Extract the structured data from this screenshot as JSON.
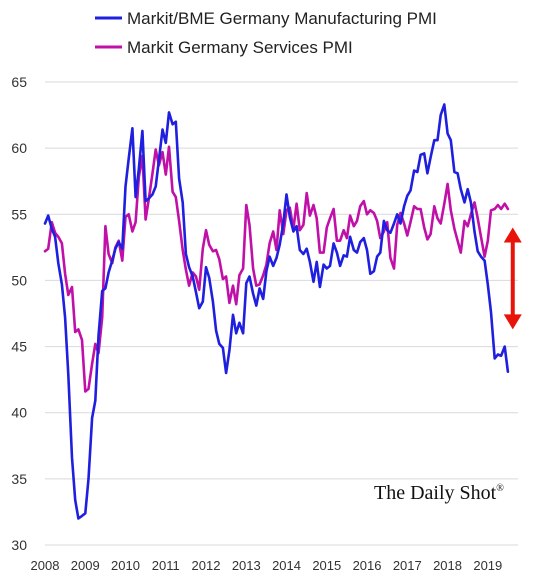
{
  "chart_data": {
    "type": "line",
    "title": "",
    "xlabel": "",
    "ylabel": "",
    "xlim": [
      2008.0,
      2019.75
    ],
    "ylim": [
      30,
      65
    ],
    "y_ticks": [
      30,
      35,
      40,
      45,
      50,
      55,
      60,
      65
    ],
    "x_ticks": [
      "2008",
      "2009",
      "2010",
      "2011",
      "2012",
      "2013",
      "2014",
      "2015",
      "2016",
      "2017",
      "2018",
      "2019"
    ],
    "grid": "horizontal",
    "legend_position": "top-left",
    "series": [
      {
        "name": "Markit/BME Germany Manufacturing PMI",
        "color": "#1f1fdf",
        "points": [
          [
            2008.0,
            54.3
          ],
          [
            2008.08,
            54.9
          ],
          [
            2008.17,
            53.9
          ],
          [
            2008.25,
            53.3
          ],
          [
            2008.33,
            51.3
          ],
          [
            2008.42,
            49.7
          ],
          [
            2008.5,
            47.2
          ],
          [
            2008.58,
            42.9
          ],
          [
            2008.67,
            36.6
          ],
          [
            2008.75,
            33.4
          ],
          [
            2008.83,
            32.0
          ],
          [
            2008.92,
            32.2
          ],
          [
            2009.0,
            32.4
          ],
          [
            2009.08,
            35.0
          ],
          [
            2009.17,
            39.6
          ],
          [
            2009.25,
            40.9
          ],
          [
            2009.33,
            45.8
          ],
          [
            2009.42,
            49.2
          ],
          [
            2009.5,
            49.4
          ],
          [
            2009.58,
            50.6
          ],
          [
            2009.67,
            51.5
          ],
          [
            2009.75,
            52.4
          ],
          [
            2009.83,
            52.9
          ],
          [
            2009.92,
            52.4
          ],
          [
            2010.0,
            57.1
          ],
          [
            2010.08,
            59.2
          ],
          [
            2010.17,
            61.5
          ],
          [
            2010.25,
            56.3
          ],
          [
            2010.33,
            58.4
          ],
          [
            2010.42,
            61.3
          ],
          [
            2010.5,
            56.0
          ],
          [
            2010.58,
            56.2
          ],
          [
            2010.67,
            56.5
          ],
          [
            2010.75,
            57.1
          ],
          [
            2010.83,
            59.1
          ],
          [
            2010.92,
            61.4
          ],
          [
            2011.0,
            60.4
          ],
          [
            2011.08,
            62.7
          ],
          [
            2011.17,
            61.8
          ],
          [
            2011.25,
            62.0
          ],
          [
            2011.33,
            57.7
          ],
          [
            2011.42,
            55.9
          ],
          [
            2011.5,
            52.0
          ],
          [
            2011.58,
            51.0
          ],
          [
            2011.67,
            50.3
          ],
          [
            2011.75,
            49.1
          ],
          [
            2011.83,
            47.9
          ],
          [
            2011.92,
            48.4
          ],
          [
            2012.0,
            51.0
          ],
          [
            2012.08,
            50.2
          ],
          [
            2012.17,
            48.4
          ],
          [
            2012.25,
            46.2
          ],
          [
            2012.33,
            45.2
          ],
          [
            2012.42,
            44.9
          ],
          [
            2012.5,
            43.0
          ],
          [
            2012.58,
            44.7
          ],
          [
            2012.67,
            47.4
          ],
          [
            2012.75,
            46.0
          ],
          [
            2012.83,
            46.8
          ],
          [
            2012.92,
            46.0
          ],
          [
            2013.0,
            49.8
          ],
          [
            2013.08,
            50.3
          ],
          [
            2013.17,
            49.0
          ],
          [
            2013.25,
            48.1
          ],
          [
            2013.33,
            49.4
          ],
          [
            2013.42,
            48.6
          ],
          [
            2013.5,
            50.7
          ],
          [
            2013.58,
            51.8
          ],
          [
            2013.67,
            51.1
          ],
          [
            2013.75,
            51.7
          ],
          [
            2013.83,
            52.7
          ],
          [
            2013.92,
            54.3
          ],
          [
            2014.0,
            56.5
          ],
          [
            2014.08,
            54.8
          ],
          [
            2014.17,
            53.7
          ],
          [
            2014.25,
            54.1
          ],
          [
            2014.33,
            52.3
          ],
          [
            2014.42,
            52.0
          ],
          [
            2014.5,
            52.4
          ],
          [
            2014.58,
            51.4
          ],
          [
            2014.67,
            49.9
          ],
          [
            2014.75,
            51.4
          ],
          [
            2014.83,
            49.5
          ],
          [
            2014.92,
            51.2
          ],
          [
            2015.0,
            50.9
          ],
          [
            2015.08,
            51.1
          ],
          [
            2015.17,
            52.8
          ],
          [
            2015.25,
            52.1
          ],
          [
            2015.33,
            51.1
          ],
          [
            2015.42,
            51.9
          ],
          [
            2015.5,
            51.8
          ],
          [
            2015.58,
            53.3
          ],
          [
            2015.67,
            52.3
          ],
          [
            2015.75,
            52.1
          ],
          [
            2015.83,
            52.9
          ],
          [
            2015.92,
            53.2
          ],
          [
            2016.0,
            52.3
          ],
          [
            2016.08,
            50.5
          ],
          [
            2016.17,
            50.7
          ],
          [
            2016.25,
            51.8
          ],
          [
            2016.33,
            52.1
          ],
          [
            2016.42,
            54.5
          ],
          [
            2016.5,
            53.8
          ],
          [
            2016.58,
            53.6
          ],
          [
            2016.67,
            54.3
          ],
          [
            2016.75,
            55.0
          ],
          [
            2016.83,
            54.3
          ],
          [
            2016.92,
            55.6
          ],
          [
            2017.0,
            56.4
          ],
          [
            2017.08,
            56.8
          ],
          [
            2017.17,
            58.3
          ],
          [
            2017.25,
            58.2
          ],
          [
            2017.33,
            59.5
          ],
          [
            2017.42,
            59.6
          ],
          [
            2017.5,
            58.1
          ],
          [
            2017.58,
            59.3
          ],
          [
            2017.67,
            60.6
          ],
          [
            2017.75,
            60.6
          ],
          [
            2017.83,
            62.5
          ],
          [
            2017.92,
            63.3
          ],
          [
            2018.0,
            61.1
          ],
          [
            2018.08,
            60.6
          ],
          [
            2018.17,
            58.2
          ],
          [
            2018.25,
            58.1
          ],
          [
            2018.33,
            56.9
          ],
          [
            2018.42,
            55.9
          ],
          [
            2018.5,
            56.9
          ],
          [
            2018.58,
            55.9
          ],
          [
            2018.67,
            53.7
          ],
          [
            2018.75,
            52.2
          ],
          [
            2018.83,
            51.8
          ],
          [
            2018.92,
            51.5
          ],
          [
            2019.0,
            49.7
          ],
          [
            2019.08,
            47.6
          ],
          [
            2019.17,
            44.1
          ],
          [
            2019.25,
            44.4
          ],
          [
            2019.33,
            44.3
          ],
          [
            2019.42,
            45.0
          ],
          [
            2019.5,
            43.1
          ]
        ]
      },
      {
        "name": "Markit Germany Services PMI",
        "color": "#c010a8",
        "points": [
          [
            2008.0,
            52.2
          ],
          [
            2008.08,
            52.4
          ],
          [
            2008.17,
            54.4
          ],
          [
            2008.25,
            53.6
          ],
          [
            2008.33,
            53.3
          ],
          [
            2008.42,
            52.8
          ],
          [
            2008.5,
            50.5
          ],
          [
            2008.58,
            48.9
          ],
          [
            2008.67,
            49.5
          ],
          [
            2008.75,
            46.1
          ],
          [
            2008.83,
            46.3
          ],
          [
            2008.92,
            45.5
          ],
          [
            2009.0,
            41.6
          ],
          [
            2009.08,
            41.8
          ],
          [
            2009.17,
            43.7
          ],
          [
            2009.25,
            45.2
          ],
          [
            2009.33,
            44.5
          ],
          [
            2009.42,
            47.2
          ],
          [
            2009.5,
            54.1
          ],
          [
            2009.58,
            52.0
          ],
          [
            2009.67,
            51.3
          ],
          [
            2009.75,
            52.5
          ],
          [
            2009.83,
            53.0
          ],
          [
            2009.92,
            51.5
          ],
          [
            2010.0,
            54.8
          ],
          [
            2010.08,
            55.0
          ],
          [
            2010.17,
            53.7
          ],
          [
            2010.25,
            54.4
          ],
          [
            2010.33,
            57.8
          ],
          [
            2010.42,
            59.4
          ],
          [
            2010.5,
            54.6
          ],
          [
            2010.58,
            56.2
          ],
          [
            2010.67,
            58.1
          ],
          [
            2010.75,
            59.9
          ],
          [
            2010.83,
            58.7
          ],
          [
            2010.92,
            59.7
          ],
          [
            2011.0,
            58.0
          ],
          [
            2011.08,
            60.1
          ],
          [
            2011.17,
            56.7
          ],
          [
            2011.25,
            56.3
          ],
          [
            2011.33,
            54.5
          ],
          [
            2011.42,
            52.3
          ],
          [
            2011.5,
            50.8
          ],
          [
            2011.58,
            49.6
          ],
          [
            2011.67,
            50.6
          ],
          [
            2011.75,
            50.3
          ],
          [
            2011.83,
            49.3
          ],
          [
            2011.92,
            52.4
          ],
          [
            2012.0,
            53.8
          ],
          [
            2012.08,
            52.7
          ],
          [
            2012.17,
            52.2
          ],
          [
            2012.25,
            52.3
          ],
          [
            2012.33,
            51.6
          ],
          [
            2012.42,
            50.1
          ],
          [
            2012.5,
            50.3
          ],
          [
            2012.58,
            48.3
          ],
          [
            2012.67,
            49.6
          ],
          [
            2012.75,
            48.2
          ],
          [
            2012.83,
            50.4
          ],
          [
            2012.92,
            50.9
          ],
          [
            2013.0,
            55.7
          ],
          [
            2013.08,
            54.2
          ],
          [
            2013.17,
            50.9
          ],
          [
            2013.25,
            49.6
          ],
          [
            2013.33,
            49.7
          ],
          [
            2013.42,
            50.4
          ],
          [
            2013.5,
            51.2
          ],
          [
            2013.58,
            52.8
          ],
          [
            2013.67,
            53.7
          ],
          [
            2013.75,
            52.3
          ],
          [
            2013.83,
            55.3
          ],
          [
            2013.92,
            53.5
          ],
          [
            2014.0,
            55.3
          ],
          [
            2014.08,
            55.5
          ],
          [
            2014.17,
            53.9
          ],
          [
            2014.25,
            55.8
          ],
          [
            2014.33,
            53.8
          ],
          [
            2014.42,
            54.2
          ],
          [
            2014.5,
            56.6
          ],
          [
            2014.58,
            54.9
          ],
          [
            2014.67,
            55.7
          ],
          [
            2014.75,
            54.7
          ],
          [
            2014.83,
            52.1
          ],
          [
            2014.92,
            52.1
          ],
          [
            2015.0,
            54.0
          ],
          [
            2015.08,
            54.7
          ],
          [
            2015.17,
            55.4
          ],
          [
            2015.25,
            53.0
          ],
          [
            2015.33,
            53.0
          ],
          [
            2015.42,
            53.8
          ],
          [
            2015.5,
            53.2
          ],
          [
            2015.58,
            54.9
          ],
          [
            2015.67,
            54.1
          ],
          [
            2015.75,
            54.5
          ],
          [
            2015.83,
            55.6
          ],
          [
            2015.92,
            56.0
          ],
          [
            2016.0,
            55.0
          ],
          [
            2016.08,
            55.3
          ],
          [
            2016.17,
            55.1
          ],
          [
            2016.25,
            54.5
          ],
          [
            2016.33,
            53.2
          ],
          [
            2016.42,
            53.7
          ],
          [
            2016.5,
            54.4
          ],
          [
            2016.58,
            51.7
          ],
          [
            2016.67,
            50.9
          ],
          [
            2016.75,
            54.2
          ],
          [
            2016.83,
            55.1
          ],
          [
            2016.92,
            54.3
          ],
          [
            2017.0,
            53.4
          ],
          [
            2017.08,
            54.4
          ],
          [
            2017.17,
            55.6
          ],
          [
            2017.25,
            55.4
          ],
          [
            2017.33,
            55.4
          ],
          [
            2017.42,
            54.0
          ],
          [
            2017.5,
            53.1
          ],
          [
            2017.58,
            53.5
          ],
          [
            2017.67,
            55.6
          ],
          [
            2017.75,
            54.7
          ],
          [
            2017.83,
            54.3
          ],
          [
            2017.92,
            55.8
          ],
          [
            2018.0,
            57.3
          ],
          [
            2018.08,
            55.3
          ],
          [
            2018.17,
            53.9
          ],
          [
            2018.25,
            53.0
          ],
          [
            2018.33,
            52.1
          ],
          [
            2018.42,
            54.5
          ],
          [
            2018.5,
            54.1
          ],
          [
            2018.58,
            55.0
          ],
          [
            2018.67,
            55.9
          ],
          [
            2018.75,
            54.7
          ],
          [
            2018.83,
            53.3
          ],
          [
            2018.92,
            51.8
          ],
          [
            2019.0,
            53.0
          ],
          [
            2019.08,
            55.3
          ],
          [
            2019.17,
            55.4
          ],
          [
            2019.25,
            55.7
          ],
          [
            2019.33,
            55.4
          ],
          [
            2019.42,
            55.8
          ],
          [
            2019.5,
            55.4
          ]
        ]
      }
    ],
    "annotations": [
      {
        "type": "double-arrow",
        "color": "#e8140a",
        "x": 2019.62,
        "y_from": 54.0,
        "y_to": 46.3
      }
    ],
    "watermark": {
      "text": "The Daily Shot",
      "mark": "®"
    }
  }
}
